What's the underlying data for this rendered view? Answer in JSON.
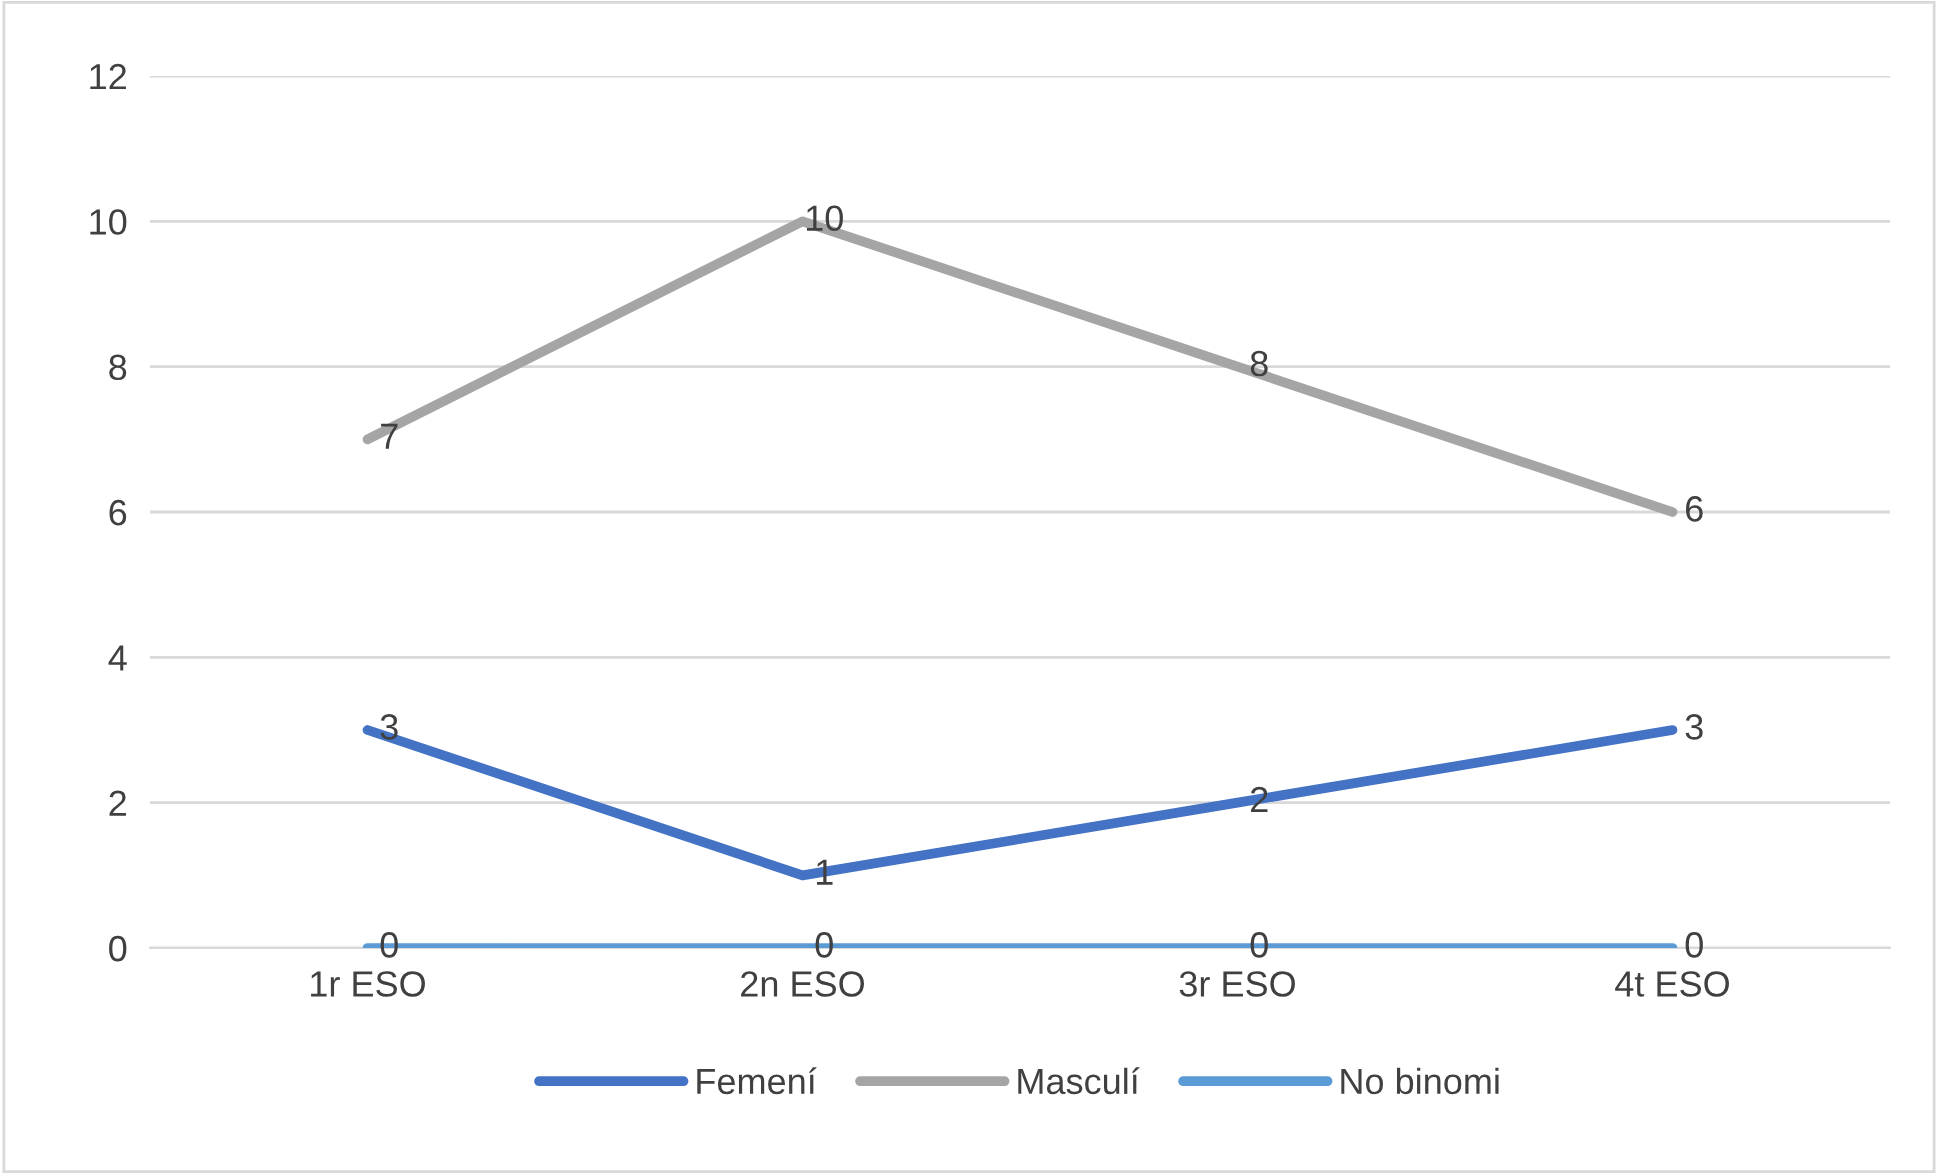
{
  "chart_data": {
    "type": "line",
    "categories": [
      "1r ESO",
      "2n ESO",
      "3r ESO",
      "4t ESO"
    ],
    "series": [
      {
        "name": "Femení",
        "color": "#4472c4",
        "values": [
          3,
          1,
          2,
          3
        ]
      },
      {
        "name": "Masculí",
        "color": "#a5a5a5",
        "values": [
          7,
          10,
          8,
          6
        ]
      },
      {
        "name": "No binomi",
        "color": "#5b9bd5",
        "values": [
          0,
          0,
          0,
          0
        ]
      }
    ],
    "ylim": [
      0,
      12
    ],
    "yticks": [
      0,
      2,
      4,
      6,
      8,
      10,
      12
    ],
    "grid": "y",
    "legend": "bottom",
    "data_labels": true,
    "marker": "none",
    "line_style": "solid"
  }
}
